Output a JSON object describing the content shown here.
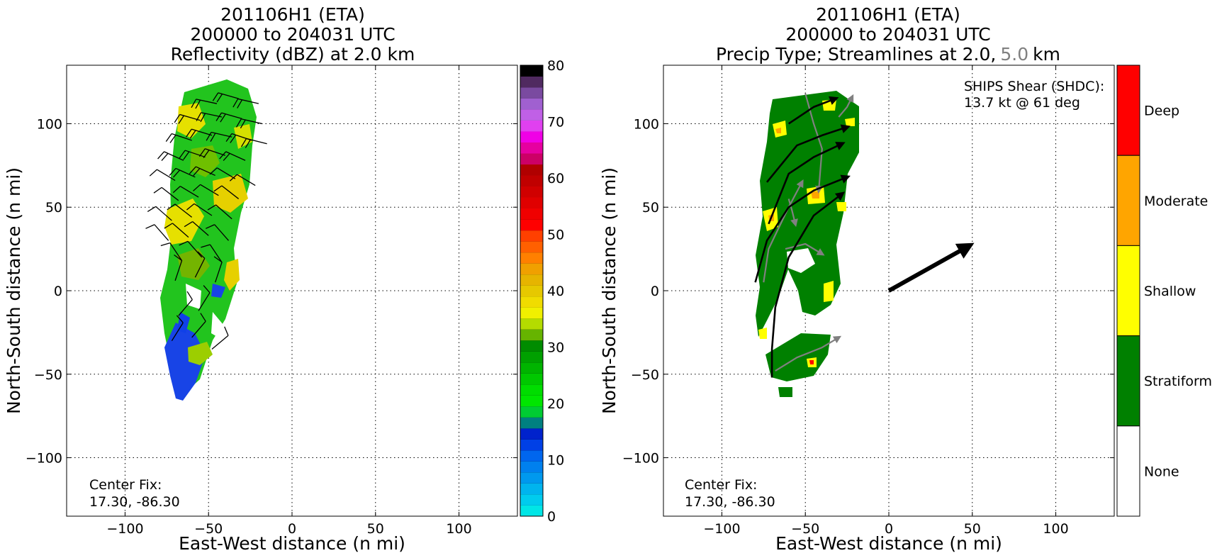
{
  "chart_data": [
    {
      "type": "heatmap",
      "title_lines": [
        "201106H1 (ETA)",
        "200000 to 204031 UTC",
        "Reflectivity (dBZ) at 2.0 km"
      ],
      "xlabel": "East-West distance (n mi)",
      "ylabel": "North-South distance (n mi)",
      "xlim": [
        -135,
        135
      ],
      "ylim": [
        -135,
        135
      ],
      "xticks": [
        "−100",
        "−50",
        "0",
        "50",
        "100"
      ],
      "xtick_values": [
        -100,
        -50,
        0,
        50,
        100
      ],
      "yticks": [
        "100",
        "50",
        "0",
        "−50",
        "−100"
      ],
      "ytick_values": [
        100,
        50,
        0,
        -50,
        -100
      ],
      "grid": true,
      "annotation_lines": [
        "Center Fix:",
        "17.30, -86.30"
      ],
      "colorbar": {
        "range": [
          0,
          80
        ],
        "tick_labels": [
          "0",
          "10",
          "20",
          "30",
          "40",
          "50",
          "60",
          "70",
          "80"
        ],
        "colors": [
          "#00e6e6",
          "#00ccee",
          "#00b4ee",
          "#0099ee",
          "#0080ee",
          "#0066ee",
          "#0040e6",
          "#0022cc",
          "#008080",
          "#00cc33",
          "#00e600",
          "#00dd00",
          "#00c800",
          "#00b400",
          "#00a000",
          "#008c00",
          "#66b400",
          "#b4dc00",
          "#f0f000",
          "#f0dc00",
          "#e6c800",
          "#e6b400",
          "#f0a000",
          "#ff8000",
          "#ff6000",
          "#ff4000",
          "#ff0000",
          "#f00000",
          "#e00000",
          "#d00000",
          "#c00000",
          "#b00000",
          "#cc0066",
          "#e600a0",
          "#f000e6",
          "#e040f0",
          "#c060e6",
          "#a060d0",
          "#7a4aa0",
          "#502a60",
          "#000000"
        ]
      },
      "barbs": {
        "x": [
          -45,
          -32,
          -20,
          -55,
          -42,
          -30,
          -18,
          -60,
          -48,
          -36,
          -24,
          -15,
          -65,
          -52,
          -40,
          -28,
          -70,
          -58,
          -46,
          -34,
          -22,
          -68,
          -56,
          -44,
          -32,
          -72,
          -60,
          -48,
          -36,
          -74,
          -62,
          -50,
          -38,
          -66,
          -54,
          -42,
          -70,
          -58,
          -46,
          -68,
          -56,
          -72,
          -60,
          -48
        ],
        "y": [
          112,
          115,
          112,
          102,
          104,
          103,
          100,
          90,
          93,
          92,
          90,
          88,
          78,
          80,
          81,
          78,
          66,
          68,
          69,
          67,
          63,
          54,
          56,
          57,
          55,
          42,
          44,
          45,
          43,
          30,
          32,
          33,
          30,
          18,
          20,
          17,
          6,
          8,
          5,
          -15,
          -12,
          -30,
          -28,
          -35
        ],
        "u": [
          14,
          14,
          13,
          14,
          14,
          14,
          13,
          12,
          13,
          13,
          12,
          12,
          11,
          12,
          12,
          11,
          10,
          11,
          11,
          10,
          10,
          9,
          10,
          10,
          9,
          8,
          9,
          9,
          8,
          7,
          8,
          8,
          7,
          6,
          7,
          6,
          -3,
          -4,
          -3,
          -6,
          -5,
          -5,
          -6,
          -6
        ],
        "v": [
          -3,
          -4,
          -3,
          -4,
          -3,
          -4,
          -3,
          -4,
          -4,
          -3,
          -4,
          -3,
          -5,
          -4,
          -4,
          -5,
          -6,
          -5,
          -5,
          -6,
          -6,
          -7,
          -6,
          -6,
          -7,
          -7,
          -7,
          -6,
          -7,
          -8,
          -7,
          -7,
          -8,
          -9,
          -8,
          -9,
          -9,
          -8,
          -9,
          -7,
          -8,
          -8,
          -7,
          -5
        ]
      }
    },
    {
      "type": "heatmap",
      "title_lines": [
        "201106H1 (ETA)",
        "200000 to 204031 UTC"
      ],
      "title_line3": {
        "prefix": "Precip Type; Streamlines at 2.0,",
        "gray_part": "5.0",
        "suffix": "km"
      },
      "xlabel": "East-West distance (n mi)",
      "ylabel": "North-South distance (n mi)",
      "xlim": [
        -135,
        135
      ],
      "ylim": [
        -135,
        135
      ],
      "xticks": [
        "−100",
        "−50",
        "0",
        "50",
        "100"
      ],
      "xtick_values": [
        -100,
        -50,
        0,
        50,
        100
      ],
      "yticks": [
        "100",
        "50",
        "0",
        "−50",
        "−100"
      ],
      "ytick_values": [
        100,
        50,
        0,
        -50,
        -100
      ],
      "grid": true,
      "annotation_lines": [
        "Center Fix:",
        "17.30, -86.30"
      ],
      "shear_lines": [
        "SHIPS Shear (SHDC):",
        "13.7 kt @ 61 deg"
      ],
      "shear_vector": {
        "x0": 0,
        "y0": 0,
        "x1": 50,
        "y1": 28
      },
      "categories": [
        {
          "label": "Deep",
          "color": "#ff0000"
        },
        {
          "label": "Moderate",
          "color": "#ffa500"
        },
        {
          "label": "Shallow",
          "color": "#ffff00"
        },
        {
          "label": "Stratiform",
          "color": "#008000"
        },
        {
          "label": "None",
          "color": "#ffffff"
        }
      ],
      "streamlines_2km": [
        [
          [
            -80,
            5
          ],
          [
            -73,
            30
          ],
          [
            -60,
            50
          ],
          [
            -45,
            60
          ],
          [
            -25,
            68
          ]
        ],
        [
          [
            -70,
            -52
          ],
          [
            -70,
            -35
          ],
          [
            -68,
            -10
          ],
          [
            -60,
            20
          ],
          [
            -45,
            45
          ],
          [
            -28,
            58
          ]
        ],
        [
          [
            -72,
            40
          ],
          [
            -60,
            70
          ],
          [
            -45,
            80
          ],
          [
            -28,
            88
          ]
        ],
        [
          [
            -73,
            65
          ],
          [
            -55,
            87
          ],
          [
            -40,
            93
          ],
          [
            -25,
            98
          ]
        ],
        [
          [
            -60,
            100
          ],
          [
            -45,
            110
          ],
          [
            -32,
            115
          ]
        ]
      ],
      "streamlines_5km": [
        [
          [
            -75,
            5
          ],
          [
            -72,
            25
          ],
          [
            -60,
            50
          ],
          [
            -52,
            65
          ]
        ],
        [
          [
            -68,
            -48
          ],
          [
            -55,
            -40
          ],
          [
            -40,
            -34
          ],
          [
            -30,
            -28
          ]
        ],
        [
          [
            -62,
            25
          ],
          [
            -50,
            28
          ],
          [
            -40,
            22
          ]
        ],
        [
          [
            -50,
            118
          ],
          [
            -45,
            100
          ],
          [
            -40,
            85
          ],
          [
            -42,
            60
          ]
        ],
        [
          [
            -30,
            104
          ],
          [
            -25,
            110
          ],
          [
            -22,
            116
          ]
        ],
        [
          [
            -60,
            55
          ],
          [
            -58,
            48
          ],
          [
            -56,
            40
          ]
        ]
      ]
    }
  ]
}
